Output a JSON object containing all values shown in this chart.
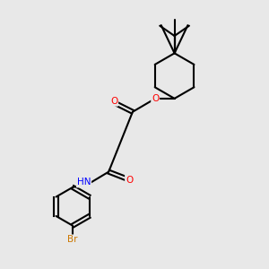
{
  "bg_color": "#e8e8e8",
  "bond_color": "#000000",
  "atom_colors": {
    "O": "#ff0000",
    "N": "#0000ff",
    "Br": "#cc7700",
    "H": "#808080",
    "C": "#000000"
  },
  "figsize": [
    3.0,
    3.0
  ],
  "dpi": 100
}
